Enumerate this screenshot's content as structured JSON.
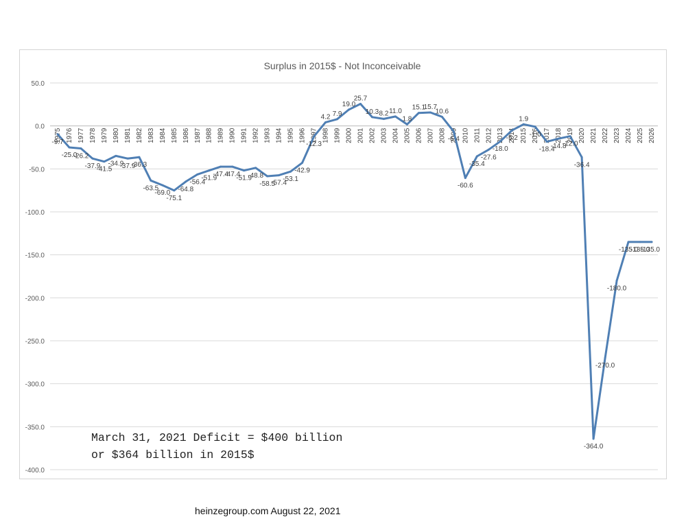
{
  "chart_data": {
    "type": "line",
    "title": "Surplus in 2015$ - Not Inconceivable",
    "xlabel": "",
    "ylabel": "",
    "ylim": [
      -400,
      50
    ],
    "y_ticks": [
      "50.0",
      "0.0",
      "-50.0",
      "-100.0",
      "-150.0",
      "-200.0",
      "-250.0",
      "-300.0",
      "-350.0",
      "-400.0"
    ],
    "grid": true,
    "legend": "none",
    "line_color": "#4f7fb4",
    "categories": [
      "1975",
      "1976",
      "1977",
      "1978",
      "1979",
      "1980",
      "1981",
      "1982",
      "1983",
      "1984",
      "1985",
      "1986",
      "1987",
      "1988",
      "1989",
      "1990",
      "1991",
      "1992",
      "1993",
      "1994",
      "1995",
      "1996",
      "1997",
      "1998",
      "1999",
      "2000",
      "2001",
      "2002",
      "2003",
      "2004",
      "2005",
      "2006",
      "2007",
      "2008",
      "2009",
      "2010",
      "2011",
      "2012",
      "2013",
      "2014",
      "2015",
      "2016",
      "2017",
      "2018",
      "2019",
      "2020",
      "2021",
      "2022",
      "2023",
      "2024",
      "2025",
      "2026"
    ],
    "values": [
      -9.7,
      -25.0,
      -26.2,
      -37.9,
      -41.5,
      -34.9,
      -37.9,
      -36.3,
      -63.5,
      -69.0,
      -75.1,
      -64.8,
      -56.4,
      -51.9,
      -47.4,
      -47.4,
      -51.9,
      -48.8,
      -58.5,
      -57.4,
      -53.1,
      -42.9,
      -12.3,
      4.2,
      7.9,
      19.0,
      25.7,
      10.3,
      8.2,
      11.0,
      1.8,
      15.1,
      15.7,
      10.6,
      -6.4,
      -60.6,
      -35.4,
      -27.6,
      -18.0,
      -5.2,
      1.9,
      -1.0,
      -18.4,
      -14.8,
      -12.0,
      -36.4,
      -364.0,
      -270.0,
      -180.0,
      -135.0,
      -135.0,
      -135.0
    ],
    "data_labels": [
      "-9.7",
      "-25.0",
      "-26.2",
      "-37.9",
      "-41.5",
      "-34.9",
      "-37.9",
      "-36.3",
      "-63.5",
      "-69.0",
      "-75.1",
      "-64.8",
      "-56.4",
      "-51.9",
      "-47.4",
      "-47.4",
      "-51.9",
      "-48.8",
      "-58.5",
      "-57.4",
      "-53.1",
      "-42.9",
      "-12.3",
      "4.2",
      "7.9",
      "19.0",
      "25.7",
      "10.3",
      "8.2",
      "11.0",
      "1.8",
      "15.1",
      "15.7",
      "10.6",
      "-6.4",
      "-60.6",
      "-35.4",
      "-27.6",
      "-18.0",
      "-5.2",
      "1.9",
      "-1.0",
      "-18.4",
      "-14.8",
      "-12.0",
      "-36.4",
      "-364.0",
      "-270.0",
      "-180.0",
      "-135.0",
      "-135.0",
      "-135.0"
    ]
  },
  "annotation": {
    "line1": "March 31, 2021 Deficit = $400 billion",
    "line2": "or $364 billion in 2015$"
  },
  "footer": "heinzegroup.com  August 22, 2021"
}
